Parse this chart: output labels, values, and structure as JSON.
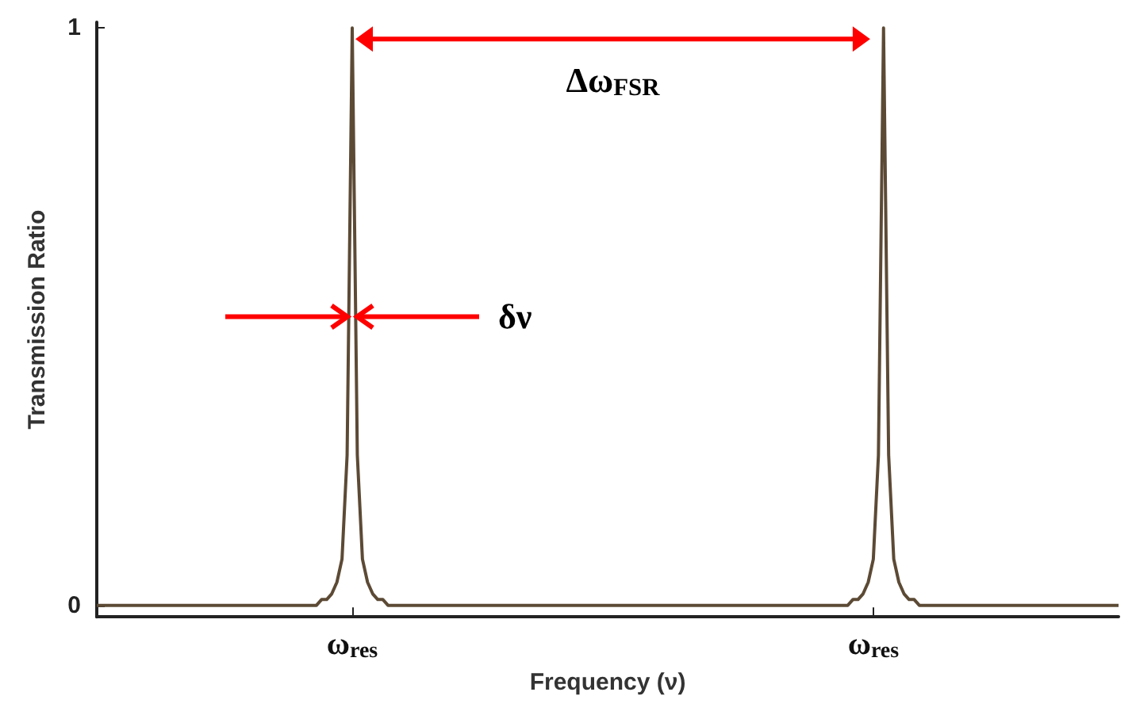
{
  "chart_data": {
    "type": "line",
    "xlabel": "Frequency (ν)",
    "ylabel": "Transmission Ratio",
    "categories": [
      null,
      null,
      null,
      null,
      null,
      null,
      null,
      null,
      null,
      null,
      null,
      null,
      null,
      null,
      null,
      null,
      null,
      null,
      null,
      null,
      null,
      null,
      null,
      null,
      null,
      null,
      null,
      null,
      null,
      null,
      null,
      null,
      null,
      null,
      null,
      null,
      null,
      null,
      null,
      null,
      null,
      null,
      null,
      null,
      null,
      null,
      null,
      null,
      null,
      null,
      "ω$_{res}$",
      null,
      null,
      null,
      null,
      null,
      null,
      null,
      null,
      null,
      null,
      null,
      null,
      null,
      null,
      null,
      null,
      null,
      null,
      null,
      null,
      null,
      null,
      null,
      null,
      null,
      null,
      null,
      null,
      null,
      null,
      null,
      null,
      null,
      null,
      null,
      null,
      null,
      null,
      null,
      null,
      null,
      null,
      null,
      null,
      null,
      null,
      null,
      null,
      null,
      null,
      null,
      null,
      null,
      null,
      null,
      null,
      null,
      null,
      null,
      null,
      null,
      null,
      null,
      null,
      null,
      null,
      null,
      null,
      null,
      null,
      null,
      null,
      null,
      null,
      null,
      null,
      null,
      null,
      null,
      null,
      null,
      null,
      null,
      null,
      null,
      null,
      null,
      null,
      null,
      null,
      null,
      null,
      null,
      null,
      null,
      null,
      null,
      null,
      null,
      null,
      null,
      "ω$_{res}$",
      null,
      null,
      null,
      null,
      null,
      null,
      null,
      null,
      null,
      null,
      null,
      null,
      null,
      null,
      null,
      null,
      null,
      null,
      null,
      null,
      null,
      null,
      null,
      null,
      null,
      null,
      null,
      null,
      null,
      null,
      null,
      null,
      null,
      null,
      null,
      null,
      null,
      null,
      null,
      null,
      null,
      null,
      null,
      null,
      null,
      null,
      null,
      null
    ],
    "series": [
      {
        "color": "#5c4a35",
        "values": [
          0,
          0,
          0,
          0,
          0,
          0,
          0,
          0,
          0,
          0,
          0,
          0,
          0,
          0,
          0,
          0,
          0,
          0,
          0,
          0,
          0,
          0,
          0,
          0,
          0,
          0,
          0,
          0,
          0,
          0,
          0,
          0,
          0,
          0,
          0,
          0,
          0,
          0,
          0,
          0,
          0,
          0,
          0,
          0,
          0.01,
          0.01,
          0.02,
          0.04,
          0.08,
          0.26,
          1,
          0.26,
          0.08,
          0.04,
          0.02,
          0.01,
          0.01,
          0,
          0,
          0,
          0,
          0,
          0,
          0,
          0,
          0,
          0,
          0,
          0,
          0,
          0,
          0,
          0,
          0,
          0,
          0,
          0,
          0,
          0,
          0,
          0,
          0,
          0,
          0,
          0,
          0,
          0,
          0,
          0,
          0,
          0,
          0,
          0,
          0,
          0,
          0,
          0,
          0,
          0,
          0,
          0,
          0,
          0,
          0,
          0,
          0,
          0,
          0,
          0,
          0,
          0,
          0,
          0,
          0,
          0,
          0,
          0,
          0,
          0,
          0,
          0,
          0,
          0,
          0,
          0,
          0,
          0,
          0,
          0,
          0,
          0,
          0,
          0,
          0,
          0,
          0,
          0,
          0,
          0,
          0,
          0,
          0,
          0,
          0,
          0,
          0,
          0,
          0,
          0.01,
          0.01,
          0.02,
          0.04,
          0.08,
          0.26,
          1,
          0.26,
          0.08,
          0.04,
          0.02,
          0.01,
          0.01,
          0,
          0,
          0,
          0,
          0,
          0,
          0,
          0,
          0,
          0,
          0,
          0,
          0,
          0,
          0,
          0,
          0,
          0,
          0,
          0,
          0,
          0,
          0,
          0,
          0,
          0,
          0,
          0,
          0,
          0,
          0,
          0,
          0,
          0,
          0,
          0,
          0,
          0,
          0,
          0
        ]
      }
    ],
    "ylim": [
      -0.02,
      1.01
    ],
    "yticks": [
      0,
      1
    ],
    "annotations": [
      "Δω$_{FSR}$",
      {
        "text": "δν",
        "x": "ω$_{res}$",
        "y": 0.5
      }
    ],
    "grid": false,
    "marker": "none",
    "line_style": "solid"
  }
}
